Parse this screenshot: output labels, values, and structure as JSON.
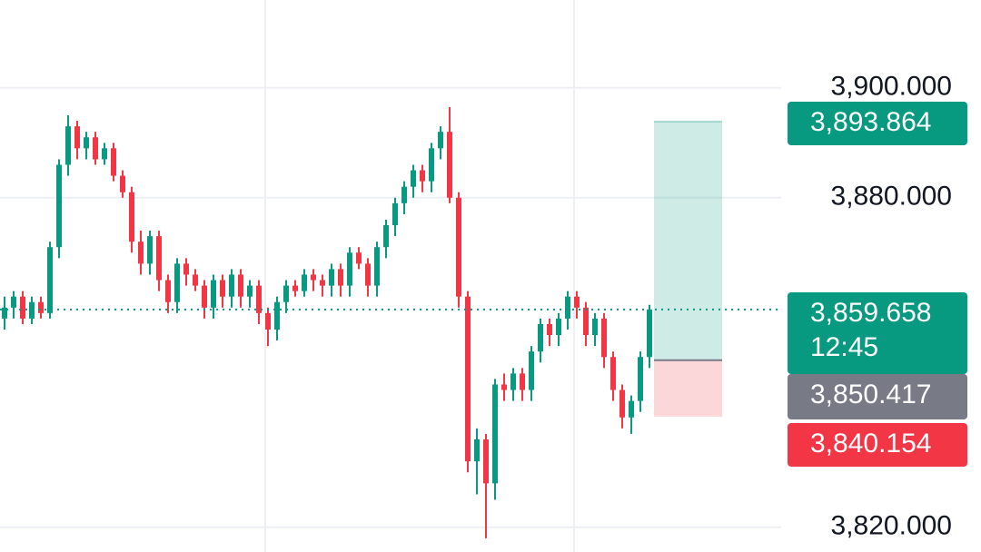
{
  "chart_data": {
    "type": "candlestick",
    "open": [
      3858,
      3860,
      3862,
      3858,
      3861,
      3859,
      3871,
      3886,
      3893,
      3889,
      3891,
      3887,
      3889,
      3884,
      3881,
      3872,
      3868,
      3873,
      3865,
      3861,
      3868,
      3866,
      3864,
      3860,
      3865,
      3862,
      3866,
      3862,
      3864,
      3859,
      3856,
      3861,
      3864,
      3863,
      3866,
      3865,
      3864,
      3867,
      3864,
      3870,
      3868,
      3864,
      3871,
      3875,
      3879,
      3882,
      3885,
      3883,
      3889,
      3892,
      3880,
      3862,
      3832,
      3836,
      3828,
      3846,
      3845,
      3848,
      3845,
      3852,
      3857,
      3855,
      3858,
      3862,
      3860,
      3855,
      3858,
      3851,
      3845,
      3840,
      3843,
      3851
    ],
    "high": [
      3862,
      3863,
      3863,
      3862,
      3862,
      3872,
      3887,
      3895,
      3894,
      3892,
      3892,
      3890,
      3890,
      3885,
      3882,
      3874,
      3874,
      3874,
      3866,
      3869,
      3869,
      3867,
      3865,
      3866,
      3866,
      3867,
      3867,
      3865,
      3865,
      3860,
      3862,
      3865,
      3865,
      3867,
      3867,
      3866,
      3868,
      3868,
      3871,
      3871,
      3869,
      3872,
      3876,
      3880,
      3883,
      3886,
      3886,
      3890,
      3893,
      3896.5,
      3881,
      3863,
      3838,
      3837,
      3847,
      3848,
      3849,
      3849,
      3853,
      3858,
      3858,
      3859,
      3863,
      3863,
      3861,
      3859,
      3859,
      3852,
      3846,
      3844,
      3852,
      3860.5
    ],
    "low": [
      3856,
      3858,
      3857,
      3857,
      3858,
      3858,
      3869,
      3884,
      3887,
      3887,
      3886,
      3886,
      3883,
      3880,
      3870,
      3866,
      3866,
      3863,
      3859,
      3859,
      3864,
      3863,
      3858,
      3858,
      3860,
      3860,
      3860,
      3860,
      3857,
      3853,
      3854,
      3859,
      3862,
      3862,
      3863,
      3862,
      3862,
      3862,
      3862,
      3867,
      3862,
      3862,
      3869,
      3873,
      3877,
      3880,
      3881,
      3881,
      3887,
      3879,
      3860,
      3830,
      3826,
      3818,
      3825,
      3843,
      3843,
      3843,
      3843,
      3850,
      3853,
      3853,
      3856,
      3858,
      3853,
      3853,
      3849,
      3843,
      3838,
      3837,
      3841,
      3849
    ],
    "close": [
      3860,
      3862,
      3858,
      3861,
      3859,
      3871,
      3886,
      3893,
      3889,
      3891,
      3887,
      3889,
      3884,
      3881,
      3872,
      3868,
      3873,
      3865,
      3861,
      3868,
      3866,
      3864,
      3860,
      3865,
      3862,
      3866,
      3862,
      3864,
      3859,
      3856,
      3861,
      3864,
      3863,
      3866,
      3865,
      3864,
      3867,
      3864,
      3870,
      3868,
      3864,
      3871,
      3875,
      3879,
      3882,
      3885,
      3883,
      3889,
      3892,
      3880,
      3862,
      3832,
      3836,
      3828,
      3846,
      3845,
      3848,
      3845,
      3852,
      3857,
      3855,
      3858,
      3862,
      3860,
      3855,
      3858,
      3851,
      3845,
      3840,
      3843,
      3851,
      3859.658
    ],
    "up_color": "#089981",
    "down_color": "#f23645",
    "ylim": [
      3815.5,
      3916
    ],
    "yticks": [
      {
        "value": 3900,
        "label": "3,900.000"
      },
      {
        "value": 3880,
        "label": "3,880.000"
      },
      {
        "value": 3820,
        "label": "3,820.000"
      }
    ],
    "grid": true,
    "current_price": {
      "value": 3859.658,
      "label": "3,859.658"
    },
    "countdown": "12:45",
    "position": {
      "target": {
        "value": 3893.864,
        "label": "3,893.864"
      },
      "entry": {
        "value": 3850.417,
        "label": "3,850.417"
      },
      "stop": {
        "value": 3840.154,
        "label": "3,840.154"
      }
    }
  }
}
